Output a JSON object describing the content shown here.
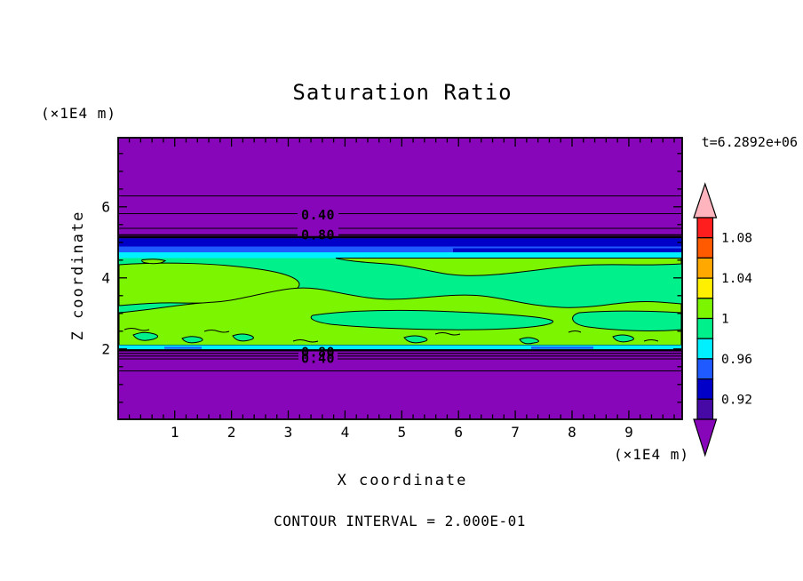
{
  "chart_data": {
    "type": "heatmap",
    "subtype": "filled-contour",
    "title": "Saturation Ratio",
    "timestamp": "t=6.2892e+06",
    "xlabel": "X coordinate",
    "ylabel": "Z coordinate",
    "x_unit": "(×1E4 m)",
    "y_unit": "(×1E4 m)",
    "contour_note": "CONTOUR INTERVAL = 2.000E-01",
    "contour_interval": 0.2,
    "xlim": [
      0,
      9.9
    ],
    "ylim": [
      0,
      7.9
    ],
    "x_ticks": [
      1,
      2,
      3,
      4,
      5,
      6,
      7,
      8,
      9
    ],
    "y_ticks": [
      2,
      4,
      6
    ],
    "grid": false,
    "legend_position": "right-colorbar",
    "contour_labels": [
      "0.40",
      "0.80",
      "0.80",
      "0.40"
    ],
    "colorbar": {
      "levels": [
        0.9,
        0.92,
        0.94,
        0.96,
        0.98,
        1.0,
        1.02,
        1.04,
        1.06,
        1.08,
        1.1
      ],
      "tick_labels": [
        "1.08",
        "1.04",
        "1",
        "0.96",
        "0.92"
      ],
      "labeled_boundary_indices": [
        1,
        3,
        5,
        7,
        9
      ],
      "cell_colors_top_to_bottom": [
        "#FF1E1E",
        "#FF5A00",
        "#FFA800",
        "#FFF000",
        "#7CF500",
        "#00F08C",
        "#00F0FF",
        "#1E5AFF",
        "#0000C8",
        "#4609A5"
      ],
      "over_arrow_color": "#FFB4BE",
      "under_arrow_color": "#8806BA"
    },
    "field_bands": [
      {
        "z_range": [
          5.2,
          7.9
        ],
        "saturation": "< 0.90",
        "fill": "purple",
        "line_contours": {
          "0.2": 6.3,
          "0.4": 5.8,
          "0.6": 5.4,
          "0.8": 5.2
        }
      },
      {
        "z_range": [
          5.05,
          5.2
        ],
        "saturation": "0.90 - 0.98",
        "fill": "navy / blue / cyan layered strip"
      },
      {
        "z_range": [
          2.1,
          5.05
        ],
        "saturation": "0.98 - 1.02",
        "fill": "spring-green and chartreuse mottled saturated zone"
      },
      {
        "z_range": [
          2.0,
          2.1
        ],
        "saturation": "0.94 - 0.98",
        "fill": "cyan strip with blue patches"
      },
      {
        "z_range": [
          0,
          2.0
        ],
        "saturation": "< 0.90",
        "fill": "purple",
        "line_contours": {
          "0.8": 1.9,
          "0.6": 1.8,
          "0.4": 1.72,
          "0.2": 1.38
        }
      }
    ]
  },
  "colors": {
    "background": "#ffffff",
    "frame": "#000000",
    "purple": "#8806BA",
    "indigo": "#4609A5",
    "navy": "#0000C8",
    "blue": "#1E5AFF",
    "cyan": "#00F0FF",
    "springgreen": "#00F08C",
    "chartreuse": "#7CF500",
    "yellow": "#FFF000",
    "orange": "#FFA800",
    "orangered": "#FF5A00",
    "red": "#FF1E1E",
    "pink": "#FFB4BE"
  }
}
